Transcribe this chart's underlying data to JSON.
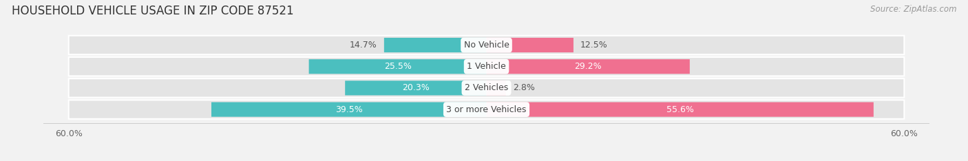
{
  "title": "HOUSEHOLD VEHICLE USAGE IN ZIP CODE 87521",
  "source": "Source: ZipAtlas.com",
  "categories": [
    "No Vehicle",
    "1 Vehicle",
    "2 Vehicles",
    "3 or more Vehicles"
  ],
  "owner_values": [
    14.7,
    25.5,
    20.3,
    39.5
  ],
  "renter_values": [
    12.5,
    29.2,
    2.8,
    55.6
  ],
  "max_val": 60.0,
  "owner_color": "#4BBFBF",
  "renter_color": "#F07090",
  "bg_color": "#F2F2F2",
  "row_bg_color": "#E4E4E4",
  "axis_label": "60.0%",
  "title_fontsize": 12,
  "source_fontsize": 8.5,
  "bar_label_fontsize": 9,
  "cat_label_fontsize": 9,
  "legend_fontsize": 9,
  "axis_fontsize": 9,
  "owner_threshold": 20,
  "renter_threshold": 20
}
